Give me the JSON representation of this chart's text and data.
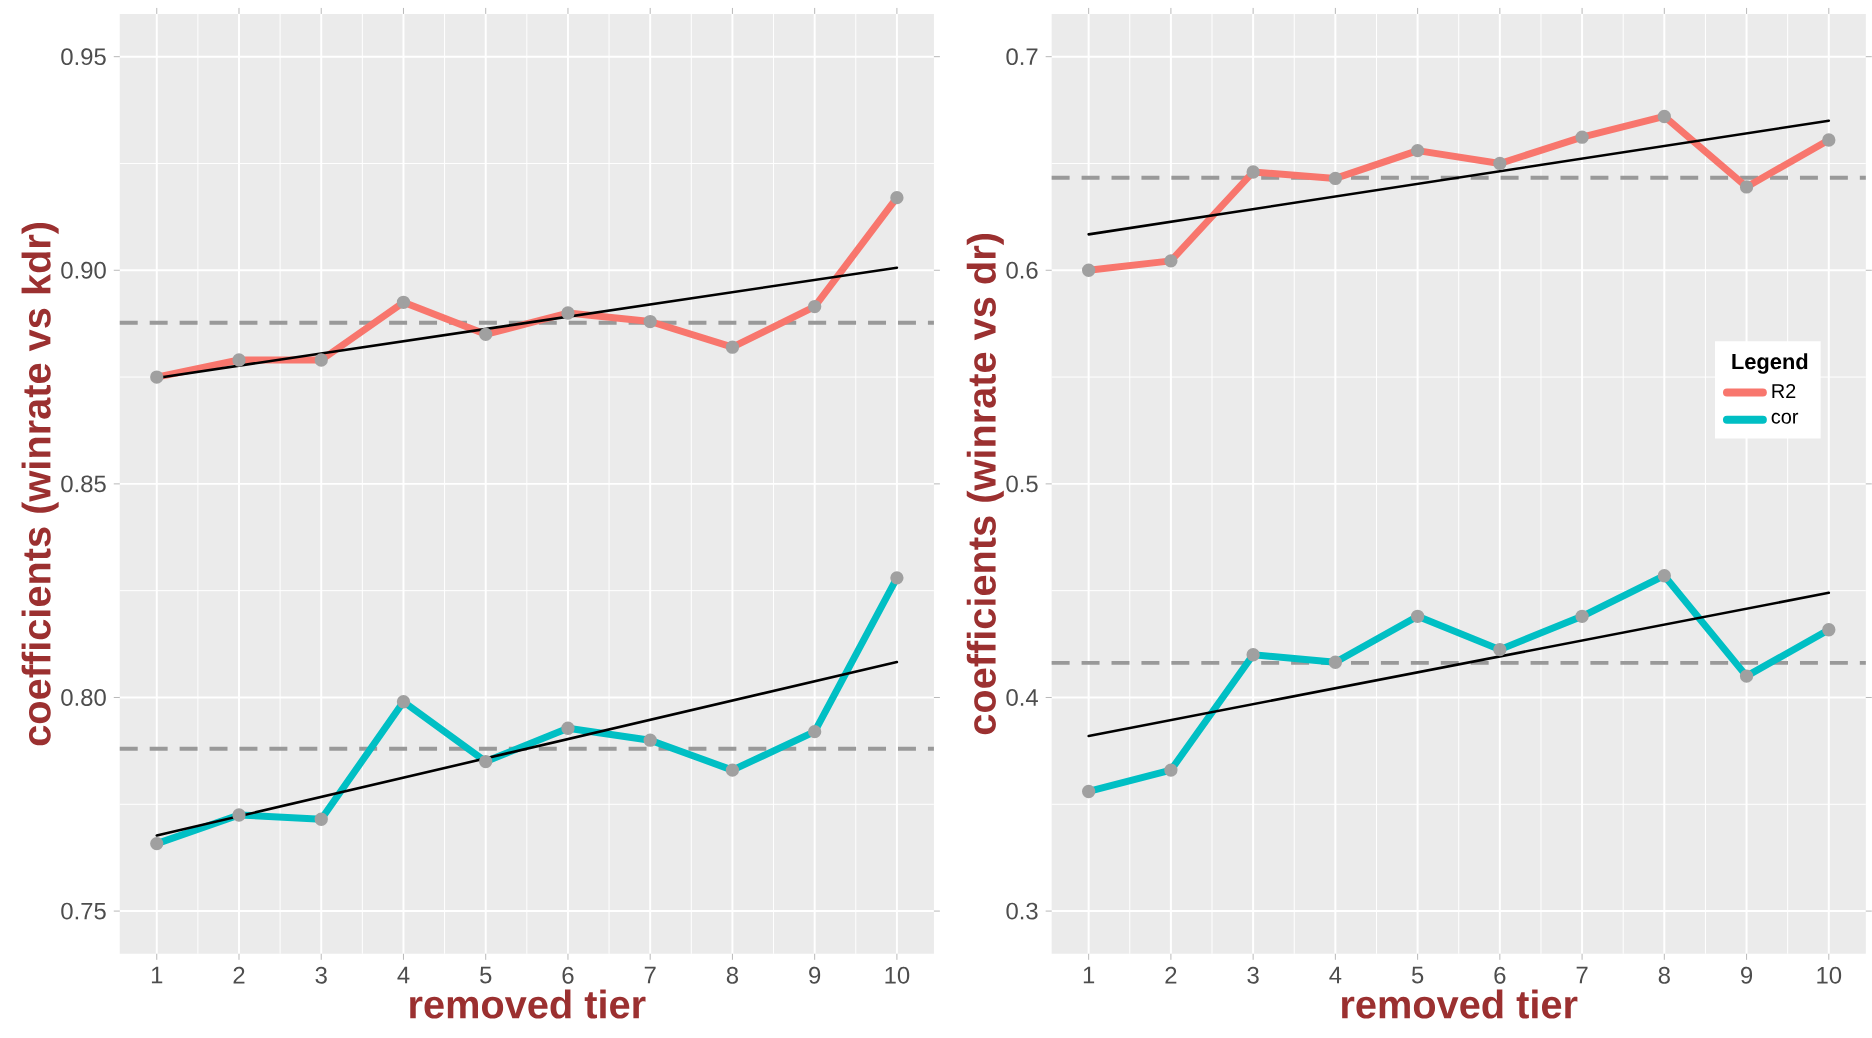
{
  "chart_data": [
    {
      "type": "line",
      "xlabel": "removed tier",
      "ylabel": "coefficients (winrate vs kdr)",
      "xlim": [
        0.55,
        10.45
      ],
      "ylim": [
        0.74,
        0.96
      ],
      "xticks": [
        1,
        2,
        3,
        4,
        5,
        6,
        7,
        8,
        9,
        10
      ],
      "yticks": [
        {
          "value": 0.75,
          "label": "0.75"
        },
        {
          "value": 0.8,
          "label": "0.80"
        },
        {
          "value": 0.85,
          "label": "0.85"
        },
        {
          "value": 0.9,
          "label": "0.90"
        },
        {
          "value": 0.95,
          "label": "0.95"
        }
      ],
      "grid": true,
      "legend": false,
      "series": [
        {
          "color": "#f8766d",
          "marker": "circle",
          "line_style": "solid",
          "x": [
            1,
            2,
            3,
            4,
            5,
            6,
            7,
            8,
            9,
            10
          ],
          "values": [
            0.875,
            0.879,
            0.879,
            0.8925,
            0.885,
            0.89,
            0.888,
            0.882,
            0.8915,
            0.917
          ]
        },
        {
          "color": "#00bfc4",
          "marker": "circle",
          "line_style": "solid",
          "x": [
            1,
            2,
            3,
            4,
            5,
            6,
            7,
            8,
            9,
            10
          ],
          "values": [
            0.7658,
            0.7725,
            0.7715,
            0.799,
            0.785,
            0.7928,
            0.79,
            0.783,
            0.792,
            0.828
          ]
        },
        {
          "type": "line",
          "color": "#000000",
          "marker": "none",
          "line_style": "solid",
          "x": [
            1,
            10
          ],
          "values": [
            0.8748,
            0.9006
          ]
        },
        {
          "type": "line",
          "color": "#000000",
          "marker": "none",
          "line_style": "solid",
          "x": [
            1,
            10
          ],
          "values": [
            0.7677,
            0.8083
          ]
        }
      ],
      "ref_lines": [
        {
          "axis": "y",
          "value": 0.8877,
          "color": "#999999",
          "line_style": "dashed"
        },
        {
          "axis": "y",
          "value": 0.788,
          "color": "#999999",
          "line_style": "dashed"
        }
      ]
    },
    {
      "type": "line",
      "xlabel": "removed tier",
      "ylabel": "coefficients (winrate vs dr)",
      "xlim": [
        0.55,
        10.45
      ],
      "ylim": [
        0.28,
        0.72
      ],
      "xticks": [
        1,
        2,
        3,
        4,
        5,
        6,
        7,
        8,
        9,
        10
      ],
      "yticks": [
        0.3,
        0.4,
        0.5,
        0.6,
        0.7
      ],
      "grid": true,
      "legend": "right",
      "legend_title": "Legend",
      "series": [
        {
          "name": "R2",
          "color": "#f8766d",
          "marker": "circle",
          "line_style": "solid",
          "x": [
            1,
            2,
            3,
            4,
            5,
            6,
            7,
            8,
            9,
            10
          ],
          "values": [
            0.6,
            0.6044,
            0.646,
            0.643,
            0.656,
            0.65,
            0.6623,
            0.672,
            0.639,
            0.661
          ]
        },
        {
          "name": "cor",
          "color": "#00bfc4",
          "marker": "circle",
          "line_style": "solid",
          "x": [
            1,
            2,
            3,
            4,
            5,
            6,
            7,
            8,
            9,
            10
          ],
          "values": [
            0.356,
            0.366,
            0.42,
            0.4165,
            0.438,
            0.4224,
            0.438,
            0.457,
            0.41,
            0.4317
          ]
        },
        {
          "type": "line",
          "color": "#000000",
          "marker": "none",
          "line_style": "solid",
          "x": [
            1,
            10
          ],
          "values": [
            0.6168,
            0.67
          ]
        },
        {
          "type": "line",
          "color": "#000000",
          "marker": "none",
          "line_style": "solid",
          "x": [
            1,
            10
          ],
          "values": [
            0.382,
            0.449
          ]
        }
      ],
      "ref_lines": [
        {
          "axis": "y",
          "value": 0.6433,
          "color": "#999999",
          "line_style": "dashed"
        },
        {
          "axis": "y",
          "value": 0.4162,
          "color": "#999999",
          "line_style": "dashed"
        }
      ]
    }
  ]
}
